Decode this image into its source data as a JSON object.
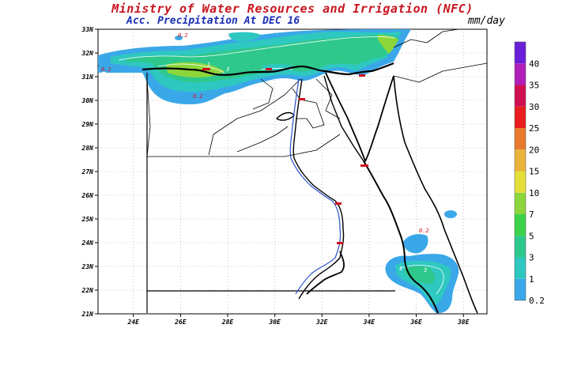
{
  "title": "Ministry of Water Resources and Irrigation (NFC)",
  "subtitle": "Acc. Precipitation  At DEC 16",
  "units": "mm/day",
  "axes": {
    "lat_labels": [
      "33N",
      "32N",
      "31N",
      "30N",
      "29N",
      "28N",
      "27N",
      "26N",
      "25N",
      "24N",
      "23N",
      "22N",
      "21N"
    ],
    "lon_labels": [
      "24E",
      "26E",
      "28E",
      "30E",
      "32E",
      "34E",
      "36E",
      "38E"
    ]
  },
  "colorbar": {
    "levels": [
      "0.2",
      "1",
      "3",
      "5",
      "7",
      "10",
      "15",
      "20",
      "25",
      "30",
      "35",
      "40"
    ],
    "colors": [
      "#3aa8e8",
      "#2ec8c0",
      "#2ec88c",
      "#3cd24c",
      "#8cd63c",
      "#e4de3a",
      "#eab43a",
      "#e87a2e",
      "#e81e1e",
      "#d0104e",
      "#b020b8",
      "#6a1ed8"
    ]
  },
  "contour_labels": [
    "0.2",
    "1",
    "3",
    "0.2",
    "0.2",
    "0.2",
    "1",
    "3"
  ],
  "colors": {
    "title": "#c8141e",
    "subtitle": "#1a2fb4",
    "light_blue": "#3aa8e8",
    "teal": "#2ec8c0",
    "green": "#2ec88c",
    "bright_green": "#8cd63c",
    "river": "#2850c8"
  }
}
